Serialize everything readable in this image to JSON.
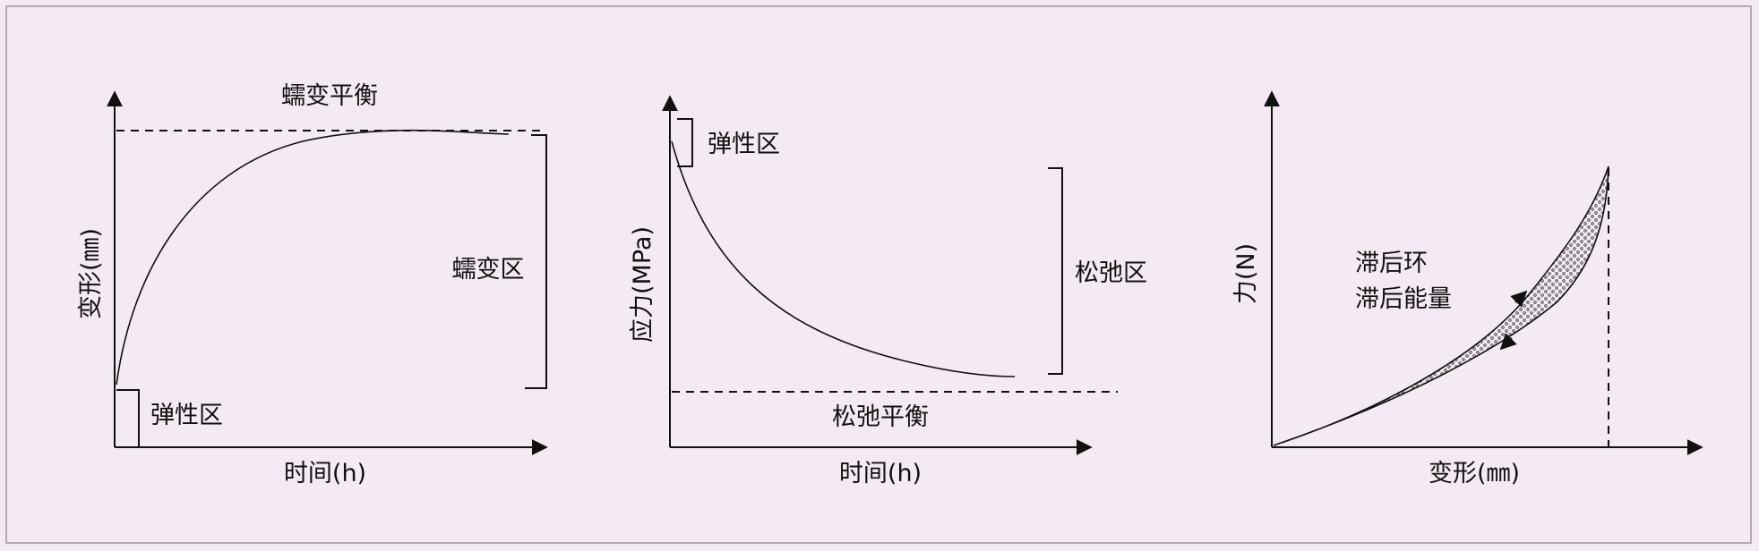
{
  "panels": [
    {
      "title": "蠕变平衡",
      "ylabel": "变形(㎜)",
      "xlabel": "时间(h)",
      "zone_labels": [
        "蠕变区",
        "弹性区"
      ]
    },
    {
      "ylabel": "应力(MPa)",
      "xlabel": "时间(h)",
      "zone_labels": [
        "弹性区",
        "松弛区"
      ],
      "equilibrium_label": "松弛平衡"
    },
    {
      "ylabel": "力(N)",
      "xlabel": "变形(㎜)",
      "loop_labels": [
        "滞后环",
        "滞后能量"
      ]
    }
  ],
  "colors": {
    "background": "#f4eaf3",
    "ink": "#111111",
    "border": "#b9a9b8"
  }
}
